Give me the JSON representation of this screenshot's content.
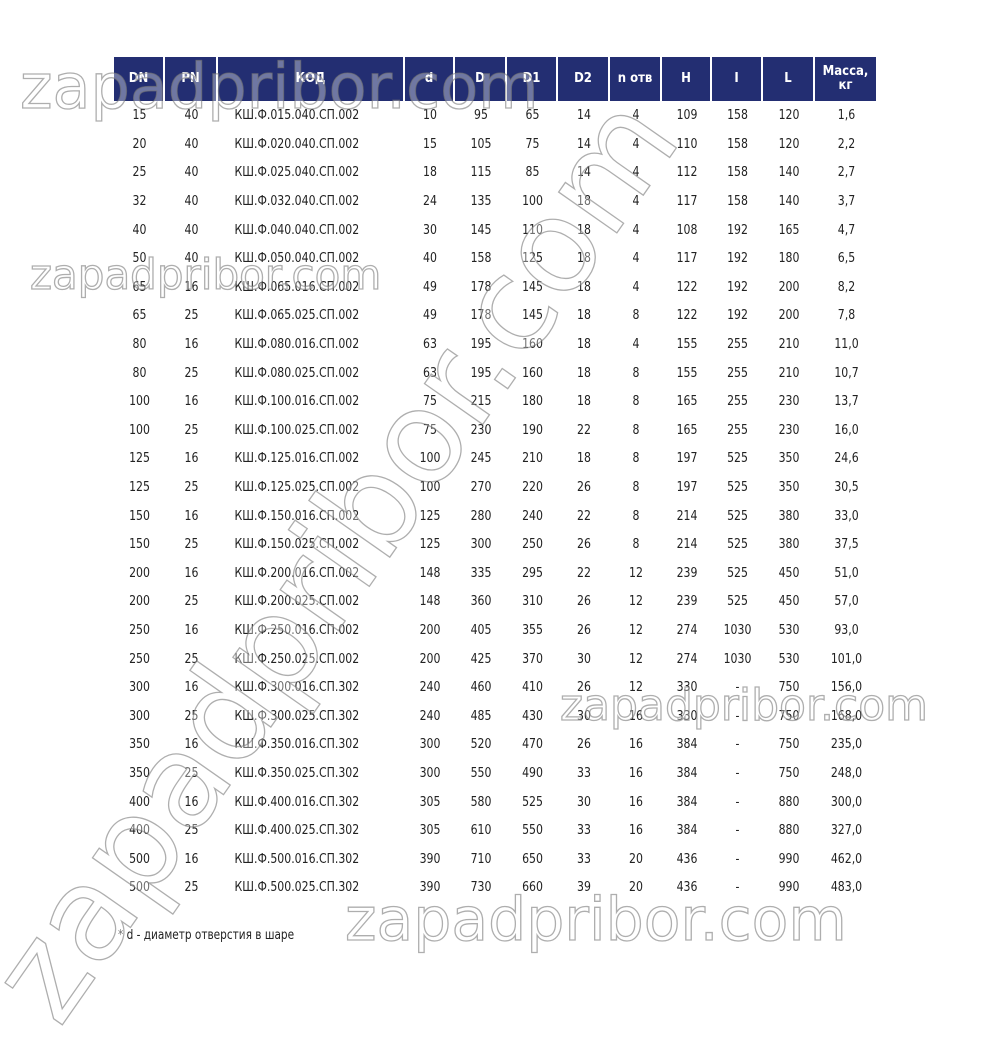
{
  "table": {
    "headers": [
      "DN",
      "PN",
      "КОД",
      "d",
      "D",
      "D1",
      "D2",
      "n отв",
      "H",
      "I",
      "L",
      "Масса, кг"
    ],
    "rows": [
      [
        "15",
        "40",
        "КШ.Ф.015.040.СП.002",
        "10",
        "95",
        "65",
        "14",
        "4",
        "109",
        "158",
        "120",
        "1,6"
      ],
      [
        "20",
        "40",
        "КШ.Ф.020.040.СП.002",
        "15",
        "105",
        "75",
        "14",
        "4",
        "110",
        "158",
        "120",
        "2,2"
      ],
      [
        "25",
        "40",
        "КШ.Ф.025.040.СП.002",
        "18",
        "115",
        "85",
        "14",
        "4",
        "112",
        "158",
        "140",
        "2,7"
      ],
      [
        "32",
        "40",
        "КШ.Ф.032.040.СП.002",
        "24",
        "135",
        "100",
        "18",
        "4",
        "117",
        "158",
        "140",
        "3,7"
      ],
      [
        "40",
        "40",
        "КШ.Ф.040.040.СП.002",
        "30",
        "145",
        "110",
        "18",
        "4",
        "108",
        "192",
        "165",
        "4,7"
      ],
      [
        "50",
        "40",
        "КШ.Ф.050.040.СП.002",
        "40",
        "158",
        "125",
        "18",
        "4",
        "117",
        "192",
        "180",
        "6,5"
      ],
      [
        "65",
        "16",
        "КШ.Ф.065.016.СП.002",
        "49",
        "178",
        "145",
        "18",
        "4",
        "122",
        "192",
        "200",
        "8,2"
      ],
      [
        "65",
        "25",
        "КШ.Ф.065.025.СП.002",
        "49",
        "178",
        "145",
        "18",
        "8",
        "122",
        "192",
        "200",
        "7,8"
      ],
      [
        "80",
        "16",
        "КШ.Ф.080.016.СП.002",
        "63",
        "195",
        "160",
        "18",
        "4",
        "155",
        "255",
        "210",
        "11,0"
      ],
      [
        "80",
        "25",
        "КШ.Ф.080.025.СП.002",
        "63",
        "195",
        "160",
        "18",
        "8",
        "155",
        "255",
        "210",
        "10,7"
      ],
      [
        "100",
        "16",
        "КШ.Ф.100.016.СП.002",
        "75",
        "215",
        "180",
        "18",
        "8",
        "165",
        "255",
        "230",
        "13,7"
      ],
      [
        "100",
        "25",
        "КШ.Ф.100.025.СП.002",
        "75",
        "230",
        "190",
        "22",
        "8",
        "165",
        "255",
        "230",
        "16,0"
      ],
      [
        "125",
        "16",
        "КШ.Ф.125.016.СП.002",
        "100",
        "245",
        "210",
        "18",
        "8",
        "197",
        "525",
        "350",
        "24,6"
      ],
      [
        "125",
        "25",
        "КШ.Ф.125.025.СП.002",
        "100",
        "270",
        "220",
        "26",
        "8",
        "197",
        "525",
        "350",
        "30,5"
      ],
      [
        "150",
        "16",
        "КШ.Ф.150.016.СП.002",
        "125",
        "280",
        "240",
        "22",
        "8",
        "214",
        "525",
        "380",
        "33,0"
      ],
      [
        "150",
        "25",
        "КШ.Ф.150.025.СП.002",
        "125",
        "300",
        "250",
        "26",
        "8",
        "214",
        "525",
        "380",
        "37,5"
      ],
      [
        "200",
        "16",
        "КШ.Ф.200.016.СП.002",
        "148",
        "335",
        "295",
        "22",
        "12",
        "239",
        "525",
        "450",
        "51,0"
      ],
      [
        "200",
        "25",
        "КШ.Ф.200.025.СП.002",
        "148",
        "360",
        "310",
        "26",
        "12",
        "239",
        "525",
        "450",
        "57,0"
      ],
      [
        "250",
        "16",
        "КШ.Ф.250.016.СП.002",
        "200",
        "405",
        "355",
        "26",
        "12",
        "274",
        "1030",
        "530",
        "93,0"
      ],
      [
        "250",
        "25",
        "КШ.Ф.250.025.СП.002",
        "200",
        "425",
        "370",
        "30",
        "12",
        "274",
        "1030",
        "530",
        "101,0"
      ],
      [
        "300",
        "16",
        "КШ.Ф.300.016.СП.302",
        "240",
        "460",
        "410",
        "26",
        "12",
        "330",
        "-",
        "750",
        "156,0"
      ],
      [
        "300",
        "25",
        "КШ.Ф.300.025.СП.302",
        "240",
        "485",
        "430",
        "30",
        "16",
        "330",
        "-",
        "750",
        "168,0"
      ],
      [
        "350",
        "16",
        "КШ.Ф.350.016.СП.302",
        "300",
        "520",
        "470",
        "26",
        "16",
        "384",
        "-",
        "750",
        "235,0"
      ],
      [
        "350",
        "25",
        "КШ.Ф.350.025.СП.302",
        "300",
        "550",
        "490",
        "33",
        "16",
        "384",
        "-",
        "750",
        "248,0"
      ],
      [
        "400",
        "16",
        "КШ.Ф.400.016.СП.302",
        "305",
        "580",
        "525",
        "30",
        "16",
        "384",
        "-",
        "880",
        "300,0"
      ],
      [
        "400",
        "25",
        "КШ.Ф.400.025.СП.302",
        "305",
        "610",
        "550",
        "33",
        "16",
        "384",
        "-",
        "880",
        "327,0"
      ],
      [
        "500",
        "16",
        "КШ.Ф.500.016.СП.302",
        "390",
        "710",
        "650",
        "33",
        "20",
        "436",
        "-",
        "990",
        "462,0"
      ],
      [
        "500",
        "25",
        "КШ.Ф.500.025.СП.302",
        "390",
        "730",
        "660",
        "39",
        "20",
        "436",
        "-",
        "990",
        "483,0"
      ]
    ]
  },
  "footnote": "* d - диаметр отверстия в шаре",
  "watermark": "zapadpribor.com",
  "colors": {
    "header_bg": "#232e72",
    "header_text": "#ffffff"
  }
}
